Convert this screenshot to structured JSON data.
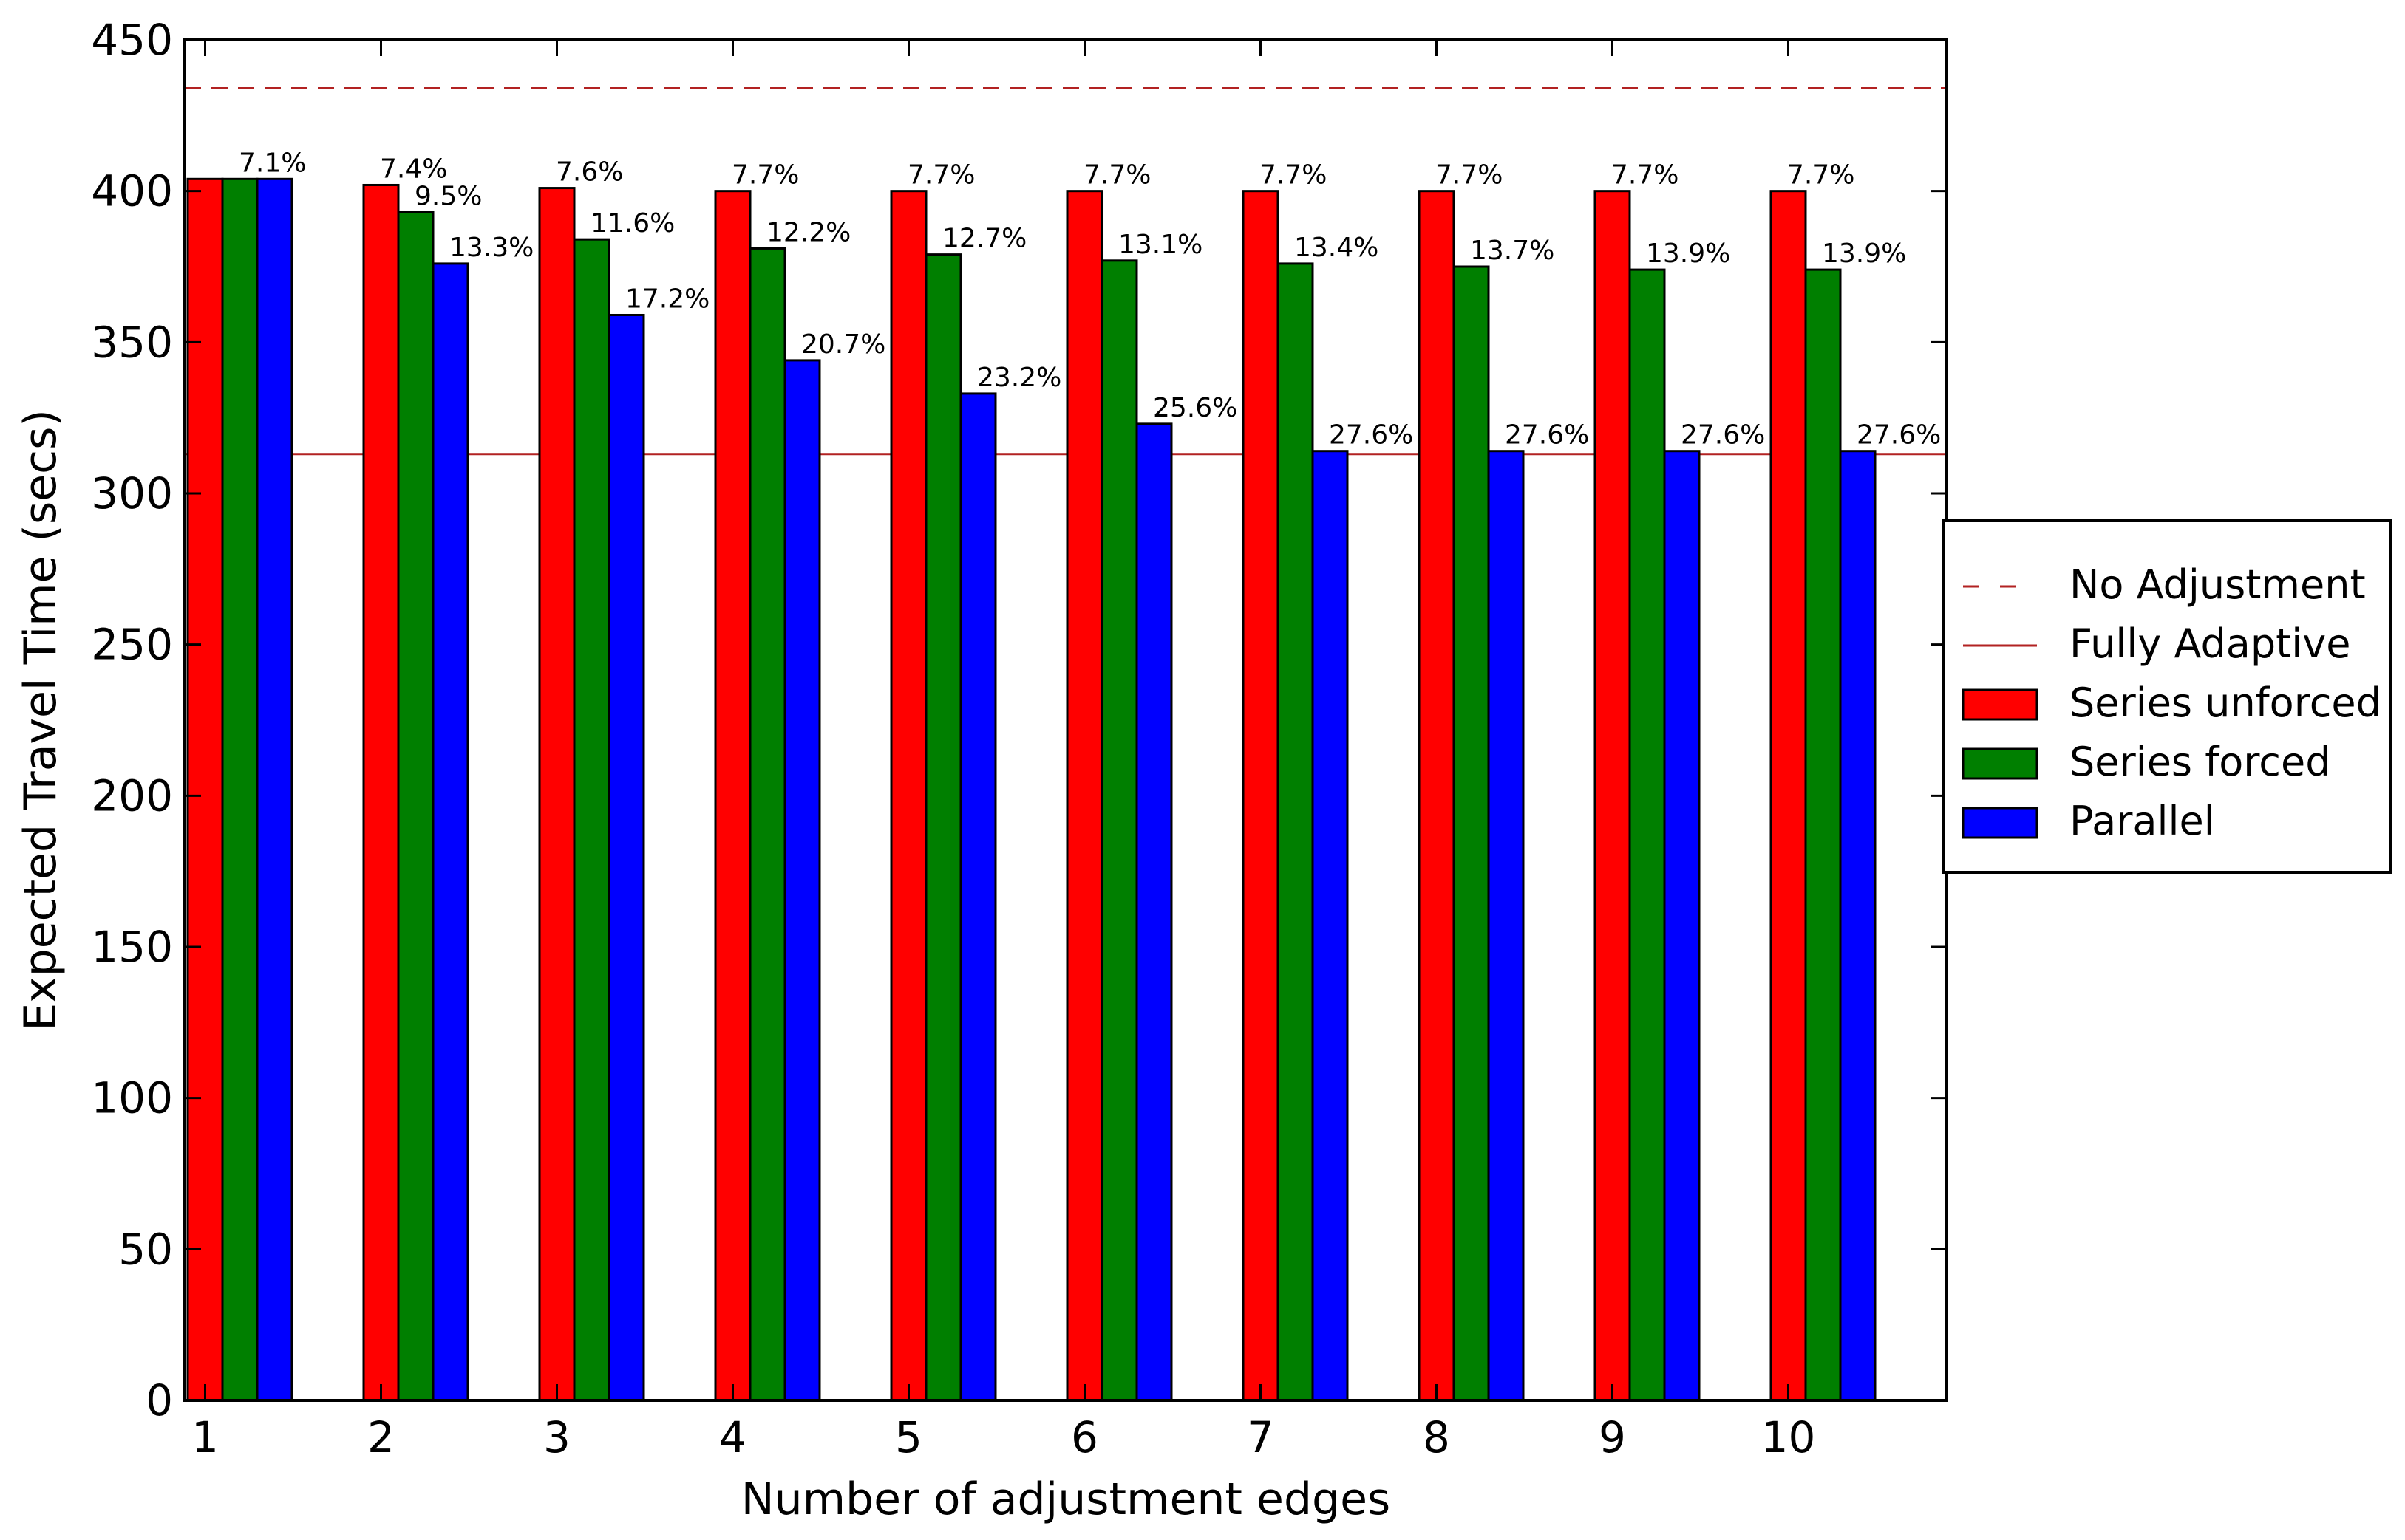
{
  "chart_data": {
    "type": "bar",
    "title": "",
    "xlabel": "Number of adjustment edges",
    "ylabel": "Expected Travel Time (secs)",
    "categories": [
      "1",
      "2",
      "3",
      "4",
      "5",
      "6",
      "7",
      "8",
      "9",
      "10"
    ],
    "ylim": [
      0,
      450
    ],
    "yticks": [
      "0",
      "50",
      "100",
      "150",
      "200",
      "250",
      "300",
      "350",
      "400",
      "450"
    ],
    "grid": false,
    "legend_position": "right",
    "series": [
      {
        "name": "Series unforced",
        "color": "#ff0000",
        "values": [
          404,
          402,
          401,
          400,
          400,
          400,
          400,
          400,
          400,
          400
        ],
        "labels": [
          "",
          "7.4%",
          "7.6%",
          "7.7%",
          "7.7%",
          "7.7%",
          "7.7%",
          "7.7%",
          "7.7%",
          "7.7%"
        ]
      },
      {
        "name": "Series forced",
        "color": "#007f00",
        "values": [
          404,
          393,
          384,
          381,
          379,
          377,
          376,
          375,
          374,
          374
        ],
        "labels": [
          "7.1%",
          "9.5%",
          "11.6%",
          "12.2%",
          "12.7%",
          "13.1%",
          "13.4%",
          "13.7%",
          "13.9%",
          "13.9%"
        ]
      },
      {
        "name": "Parallel",
        "color": "#0000ff",
        "values": [
          404,
          376,
          359,
          344,
          333,
          323,
          314,
          314,
          314,
          314
        ],
        "labels": [
          "",
          "13.3%",
          "17.2%",
          "20.7%",
          "23.2%",
          "25.6%",
          "27.6%",
          "27.6%",
          "27.6%",
          "27.6%"
        ]
      }
    ],
    "reference_lines": [
      {
        "name": "No Adjustment",
        "value": 434,
        "style": "dashed",
        "color": "#b22222"
      },
      {
        "name": "Fully Adaptive",
        "value": 313,
        "style": "solid",
        "color": "#b22222"
      }
    ]
  }
}
